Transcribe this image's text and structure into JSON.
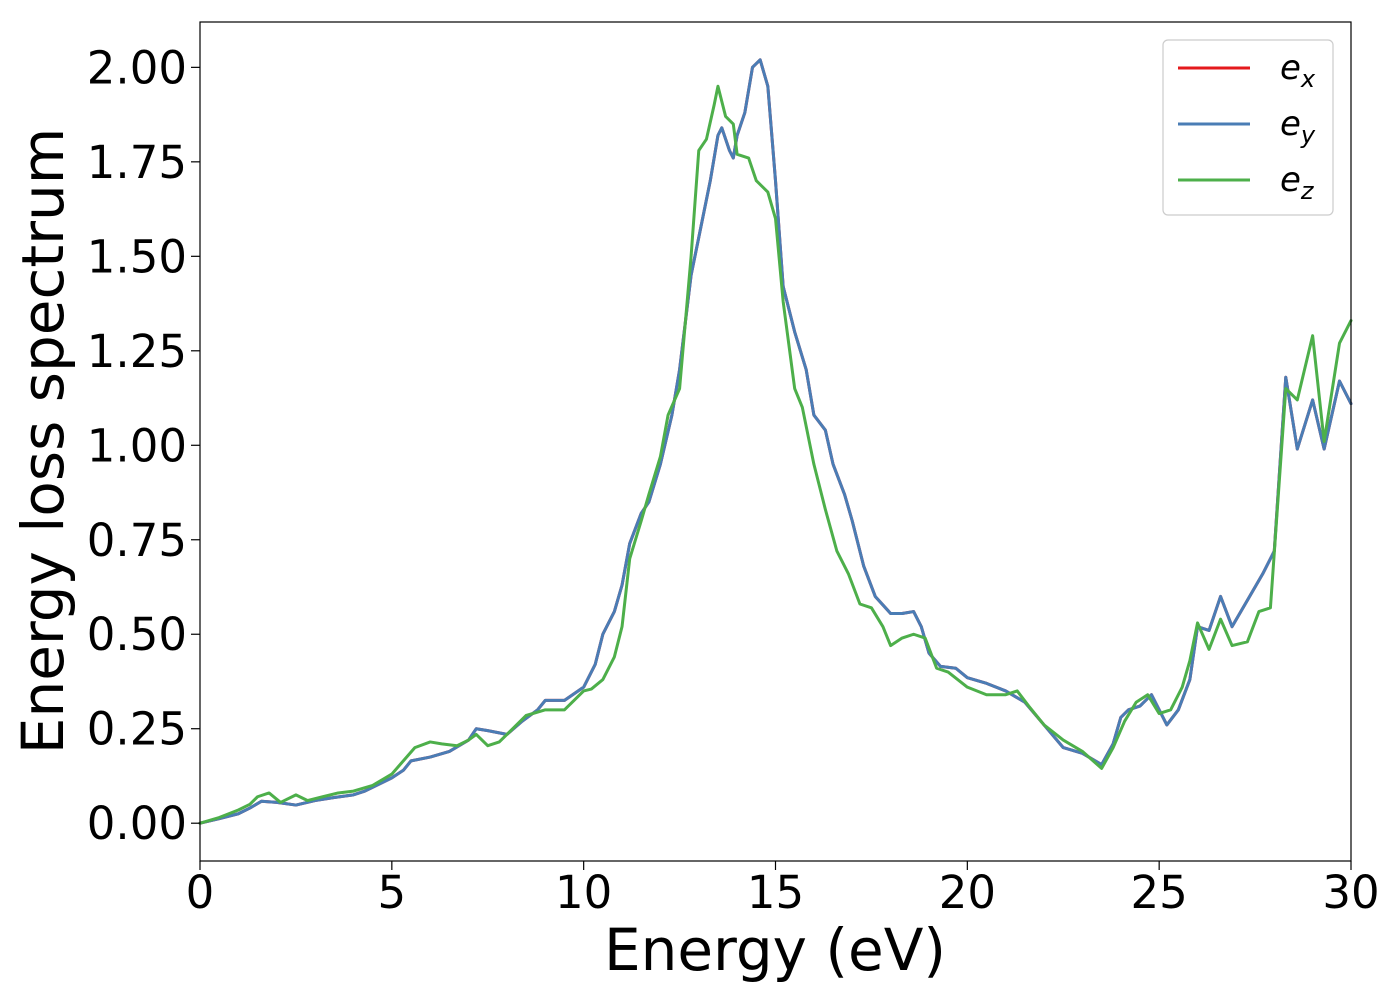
{
  "chart_data": {
    "type": "line",
    "title": "",
    "xlabel": "Energy (eV)",
    "ylabel": "Energy loss spectrum",
    "xlim": [
      0,
      30
    ],
    "ylim": [
      -0.1,
      2.12
    ],
    "xticks": [
      0,
      5,
      10,
      15,
      20,
      25,
      30
    ],
    "xtick_labels": [
      "0",
      "5",
      "10",
      "15",
      "20",
      "25",
      "30"
    ],
    "yticks": [
      0,
      0.25,
      0.5,
      0.75,
      1.0,
      1.25,
      1.5,
      1.75,
      2.0
    ],
    "ytick_labels": [
      "0.00",
      "0.25",
      "0.50",
      "0.75",
      "1.00",
      "1.25",
      "1.50",
      "1.75",
      "2.00"
    ],
    "grid": false,
    "legend_position": "top-right",
    "series": [
      {
        "name": "e_x",
        "label_base": "e",
        "label_sub": "x",
        "color": "#e41a1c",
        "points": [
          [
            0,
            0.0
          ],
          [
            0.5,
            0.012
          ],
          [
            1.0,
            0.025
          ],
          [
            1.3,
            0.04
          ],
          [
            1.6,
            0.058
          ],
          [
            2.0,
            0.055
          ],
          [
            2.5,
            0.048
          ],
          [
            3.0,
            0.06
          ],
          [
            3.5,
            0.068
          ],
          [
            4.0,
            0.075
          ],
          [
            4.3,
            0.085
          ],
          [
            4.6,
            0.1
          ],
          [
            5.0,
            0.12
          ],
          [
            5.3,
            0.14
          ],
          [
            5.5,
            0.165
          ],
          [
            6.0,
            0.175
          ],
          [
            6.5,
            0.19
          ],
          [
            7.0,
            0.22
          ],
          [
            7.2,
            0.25
          ],
          [
            7.5,
            0.245
          ],
          [
            8.0,
            0.235
          ],
          [
            8.4,
            0.27
          ],
          [
            8.8,
            0.3
          ],
          [
            9.0,
            0.325
          ],
          [
            9.5,
            0.325
          ],
          [
            10.0,
            0.36
          ],
          [
            10.3,
            0.42
          ],
          [
            10.5,
            0.5
          ],
          [
            10.8,
            0.56
          ],
          [
            11.0,
            0.63
          ],
          [
            11.2,
            0.74
          ],
          [
            11.5,
            0.82
          ],
          [
            11.7,
            0.85
          ],
          [
            12.0,
            0.95
          ],
          [
            12.3,
            1.08
          ],
          [
            12.5,
            1.2
          ],
          [
            12.8,
            1.45
          ],
          [
            13.0,
            1.55
          ],
          [
            13.3,
            1.7
          ],
          [
            13.5,
            1.82
          ],
          [
            13.6,
            1.84
          ],
          [
            13.8,
            1.78
          ],
          [
            13.9,
            1.76
          ],
          [
            14.0,
            1.82
          ],
          [
            14.2,
            1.88
          ],
          [
            14.4,
            2.0
          ],
          [
            14.6,
            2.02
          ],
          [
            14.8,
            1.95
          ],
          [
            15.0,
            1.7
          ],
          [
            15.2,
            1.42
          ],
          [
            15.5,
            1.3
          ],
          [
            15.8,
            1.2
          ],
          [
            16.0,
            1.08
          ],
          [
            16.3,
            1.04
          ],
          [
            16.5,
            0.95
          ],
          [
            16.8,
            0.87
          ],
          [
            17.0,
            0.8
          ],
          [
            17.3,
            0.68
          ],
          [
            17.6,
            0.6
          ],
          [
            18.0,
            0.555
          ],
          [
            18.3,
            0.555
          ],
          [
            18.6,
            0.56
          ],
          [
            18.8,
            0.52
          ],
          [
            19.0,
            0.45
          ],
          [
            19.3,
            0.415
          ],
          [
            19.7,
            0.41
          ],
          [
            20.0,
            0.385
          ],
          [
            20.5,
            0.37
          ],
          [
            21.0,
            0.35
          ],
          [
            21.5,
            0.32
          ],
          [
            22.0,
            0.26
          ],
          [
            22.5,
            0.2
          ],
          [
            23.0,
            0.185
          ],
          [
            23.5,
            0.155
          ],
          [
            23.8,
            0.21
          ],
          [
            24.0,
            0.28
          ],
          [
            24.2,
            0.3
          ],
          [
            24.5,
            0.31
          ],
          [
            24.8,
            0.34
          ],
          [
            25.0,
            0.3
          ],
          [
            25.2,
            0.26
          ],
          [
            25.5,
            0.3
          ],
          [
            25.8,
            0.38
          ],
          [
            26.0,
            0.52
          ],
          [
            26.3,
            0.51
          ],
          [
            26.6,
            0.6
          ],
          [
            26.9,
            0.52
          ],
          [
            27.3,
            0.59
          ],
          [
            27.7,
            0.66
          ],
          [
            28.0,
            0.72
          ],
          [
            28.3,
            1.18
          ],
          [
            28.6,
            0.99
          ],
          [
            29.0,
            1.12
          ],
          [
            29.3,
            0.99
          ],
          [
            29.7,
            1.17
          ],
          [
            30.0,
            1.11
          ]
        ]
      },
      {
        "name": "e_y",
        "label_base": "e",
        "label_sub": "y",
        "color": "#4a7db5",
        "points": [
          [
            0,
            0.0
          ],
          [
            0.5,
            0.012
          ],
          [
            1.0,
            0.025
          ],
          [
            1.3,
            0.04
          ],
          [
            1.6,
            0.058
          ],
          [
            2.0,
            0.055
          ],
          [
            2.5,
            0.048
          ],
          [
            3.0,
            0.06
          ],
          [
            3.5,
            0.068
          ],
          [
            4.0,
            0.075
          ],
          [
            4.3,
            0.085
          ],
          [
            4.6,
            0.1
          ],
          [
            5.0,
            0.12
          ],
          [
            5.3,
            0.14
          ],
          [
            5.5,
            0.165
          ],
          [
            6.0,
            0.175
          ],
          [
            6.5,
            0.19
          ],
          [
            7.0,
            0.22
          ],
          [
            7.2,
            0.25
          ],
          [
            7.5,
            0.245
          ],
          [
            8.0,
            0.235
          ],
          [
            8.4,
            0.27
          ],
          [
            8.8,
            0.3
          ],
          [
            9.0,
            0.325
          ],
          [
            9.5,
            0.325
          ],
          [
            10.0,
            0.36
          ],
          [
            10.3,
            0.42
          ],
          [
            10.5,
            0.5
          ],
          [
            10.8,
            0.56
          ],
          [
            11.0,
            0.63
          ],
          [
            11.2,
            0.74
          ],
          [
            11.5,
            0.82
          ],
          [
            11.7,
            0.85
          ],
          [
            12.0,
            0.95
          ],
          [
            12.3,
            1.08
          ],
          [
            12.5,
            1.2
          ],
          [
            12.8,
            1.45
          ],
          [
            13.0,
            1.55
          ],
          [
            13.3,
            1.7
          ],
          [
            13.5,
            1.82
          ],
          [
            13.6,
            1.84
          ],
          [
            13.8,
            1.78
          ],
          [
            13.9,
            1.76
          ],
          [
            14.0,
            1.82
          ],
          [
            14.2,
            1.88
          ],
          [
            14.4,
            2.0
          ],
          [
            14.6,
            2.02
          ],
          [
            14.8,
            1.95
          ],
          [
            15.0,
            1.7
          ],
          [
            15.2,
            1.42
          ],
          [
            15.5,
            1.3
          ],
          [
            15.8,
            1.2
          ],
          [
            16.0,
            1.08
          ],
          [
            16.3,
            1.04
          ],
          [
            16.5,
            0.95
          ],
          [
            16.8,
            0.87
          ],
          [
            17.0,
            0.8
          ],
          [
            17.3,
            0.68
          ],
          [
            17.6,
            0.6
          ],
          [
            18.0,
            0.555
          ],
          [
            18.3,
            0.555
          ],
          [
            18.6,
            0.56
          ],
          [
            18.8,
            0.52
          ],
          [
            19.0,
            0.45
          ],
          [
            19.3,
            0.415
          ],
          [
            19.7,
            0.41
          ],
          [
            20.0,
            0.385
          ],
          [
            20.5,
            0.37
          ],
          [
            21.0,
            0.35
          ],
          [
            21.5,
            0.32
          ],
          [
            22.0,
            0.26
          ],
          [
            22.5,
            0.2
          ],
          [
            23.0,
            0.185
          ],
          [
            23.5,
            0.155
          ],
          [
            23.8,
            0.21
          ],
          [
            24.0,
            0.28
          ],
          [
            24.2,
            0.3
          ],
          [
            24.5,
            0.31
          ],
          [
            24.8,
            0.34
          ],
          [
            25.0,
            0.3
          ],
          [
            25.2,
            0.26
          ],
          [
            25.5,
            0.3
          ],
          [
            25.8,
            0.38
          ],
          [
            26.0,
            0.52
          ],
          [
            26.3,
            0.51
          ],
          [
            26.6,
            0.6
          ],
          [
            26.9,
            0.52
          ],
          [
            27.3,
            0.59
          ],
          [
            27.7,
            0.66
          ],
          [
            28.0,
            0.72
          ],
          [
            28.3,
            1.18
          ],
          [
            28.6,
            0.99
          ],
          [
            29.0,
            1.12
          ],
          [
            29.3,
            0.99
          ],
          [
            29.7,
            1.17
          ],
          [
            30.0,
            1.11
          ]
        ]
      },
      {
        "name": "e_z",
        "label_base": "e",
        "label_sub": "z",
        "color": "#4daf4a",
        "points": [
          [
            0,
            0.0
          ],
          [
            0.5,
            0.015
          ],
          [
            1.0,
            0.035
          ],
          [
            1.3,
            0.05
          ],
          [
            1.5,
            0.07
          ],
          [
            1.8,
            0.08
          ],
          [
            2.1,
            0.055
          ],
          [
            2.5,
            0.075
          ],
          [
            2.8,
            0.06
          ],
          [
            3.2,
            0.07
          ],
          [
            3.6,
            0.08
          ],
          [
            4.0,
            0.085
          ],
          [
            4.5,
            0.1
          ],
          [
            5.0,
            0.13
          ],
          [
            5.3,
            0.165
          ],
          [
            5.6,
            0.2
          ],
          [
            6.0,
            0.215
          ],
          [
            6.3,
            0.21
          ],
          [
            6.7,
            0.205
          ],
          [
            7.0,
            0.22
          ],
          [
            7.2,
            0.235
          ],
          [
            7.5,
            0.205
          ],
          [
            7.8,
            0.215
          ],
          [
            8.2,
            0.255
          ],
          [
            8.5,
            0.285
          ],
          [
            9.0,
            0.3
          ],
          [
            9.5,
            0.3
          ],
          [
            10.0,
            0.35
          ],
          [
            10.2,
            0.355
          ],
          [
            10.5,
            0.38
          ],
          [
            10.8,
            0.44
          ],
          [
            11.0,
            0.52
          ],
          [
            11.2,
            0.7
          ],
          [
            11.5,
            0.8
          ],
          [
            11.7,
            0.87
          ],
          [
            12.0,
            0.97
          ],
          [
            12.2,
            1.08
          ],
          [
            12.5,
            1.15
          ],
          [
            12.8,
            1.5
          ],
          [
            13.0,
            1.78
          ],
          [
            13.2,
            1.81
          ],
          [
            13.4,
            1.9
          ],
          [
            13.5,
            1.95
          ],
          [
            13.7,
            1.87
          ],
          [
            13.9,
            1.85
          ],
          [
            14.0,
            1.77
          ],
          [
            14.3,
            1.76
          ],
          [
            14.5,
            1.7
          ],
          [
            14.8,
            1.67
          ],
          [
            15.0,
            1.6
          ],
          [
            15.2,
            1.38
          ],
          [
            15.5,
            1.15
          ],
          [
            15.7,
            1.1
          ],
          [
            16.0,
            0.95
          ],
          [
            16.3,
            0.83
          ],
          [
            16.6,
            0.72
          ],
          [
            16.9,
            0.66
          ],
          [
            17.2,
            0.58
          ],
          [
            17.5,
            0.57
          ],
          [
            17.8,
            0.52
          ],
          [
            18.0,
            0.47
          ],
          [
            18.3,
            0.49
          ],
          [
            18.6,
            0.5
          ],
          [
            18.9,
            0.49
          ],
          [
            19.2,
            0.41
          ],
          [
            19.5,
            0.4
          ],
          [
            20.0,
            0.36
          ],
          [
            20.5,
            0.34
          ],
          [
            21.0,
            0.34
          ],
          [
            21.3,
            0.35
          ],
          [
            21.6,
            0.31
          ],
          [
            22.0,
            0.26
          ],
          [
            22.5,
            0.22
          ],
          [
            23.0,
            0.19
          ],
          [
            23.5,
            0.145
          ],
          [
            23.8,
            0.2
          ],
          [
            24.1,
            0.27
          ],
          [
            24.4,
            0.32
          ],
          [
            24.7,
            0.34
          ],
          [
            25.0,
            0.29
          ],
          [
            25.3,
            0.3
          ],
          [
            25.6,
            0.36
          ],
          [
            25.8,
            0.43
          ],
          [
            26.0,
            0.53
          ],
          [
            26.3,
            0.46
          ],
          [
            26.6,
            0.54
          ],
          [
            26.9,
            0.47
          ],
          [
            27.3,
            0.48
          ],
          [
            27.6,
            0.56
          ],
          [
            27.9,
            0.57
          ],
          [
            28.3,
            1.15
          ],
          [
            28.6,
            1.12
          ],
          [
            29.0,
            1.29
          ],
          [
            29.3,
            1.01
          ],
          [
            29.7,
            1.27
          ],
          [
            30.0,
            1.33
          ]
        ]
      }
    ]
  }
}
